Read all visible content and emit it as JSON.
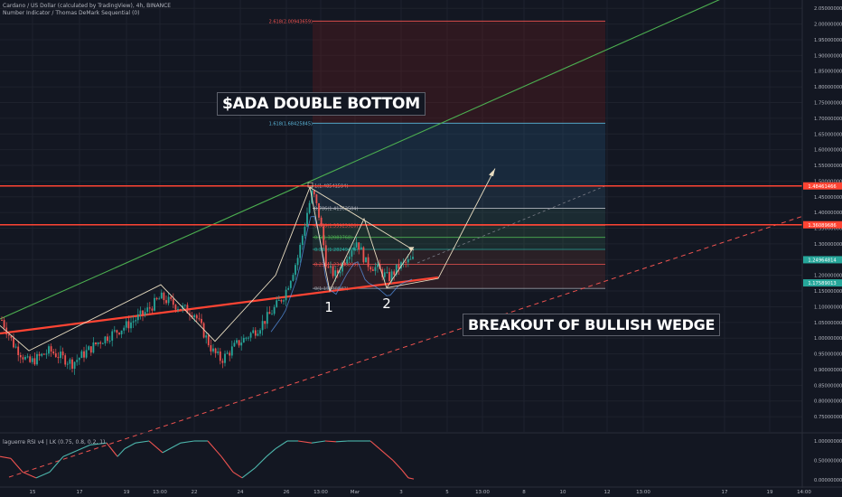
{
  "header": {
    "title": "Cardano / US Dollar (calculated by TradingView), 4h, BINANCE",
    "indicator": "Number Indicator / Thomas DeMark Sequential (0)"
  },
  "annotations": {
    "double_bottom": "$ADA DOUBLE BOTTOM",
    "breakout": "BREAKOUT OF BULLISH WEDGE",
    "bottom_1": "1",
    "bottom_2": "2"
  },
  "colors": {
    "background": "#131722",
    "up": "#26a69a",
    "down": "#ef5350",
    "resistance": "#ff4433",
    "channel_top": "#4caf50",
    "pattern": "#e8dcc0"
  },
  "chart_data": {
    "type": "candlestick",
    "symbol": "Cardano / US Dollar",
    "timeframe": "4h",
    "exchange": "BINANCE",
    "x_ticks": [
      "15",
      "17",
      "19",
      "13:00",
      "22",
      "24",
      "26",
      "13:00",
      "Mar",
      "3",
      "5",
      "13:00",
      "8",
      "10",
      "12",
      "13:00",
      "17",
      "19",
      "14:00"
    ],
    "y_ticks": [
      "2.05000000",
      "2.00000000",
      "1.95000000",
      "1.90000000",
      "1.85000000",
      "1.80000000",
      "1.75000000",
      "1.70000000",
      "1.65000000",
      "1.60000000",
      "1.55000000",
      "1.50000000",
      "1.45000000",
      "1.40000000",
      "1.35000000",
      "1.30000000",
      "1.25000000",
      "1.20000000",
      "1.15000000",
      "1.10000000",
      "1.05000000",
      "1.00000000",
      "0.95000000",
      "0.90000000",
      "0.85000000",
      "0.80000000",
      "0.75000000"
    ],
    "ylim": [
      0.72,
      2.06
    ],
    "price_badges": [
      {
        "label": "1.48461466",
        "value": 1.4846,
        "color": "#ff4433"
      },
      {
        "label": "1.36089686",
        "value": 1.3609,
        "color": "#ff4433"
      },
      {
        "label": "1.24964814",
        "value": 1.2496,
        "color": "#26a69a"
      },
      {
        "label": "1.17589013",
        "value": 1.1759,
        "color": "#26a69a"
      }
    ],
    "horizontal_levels": [
      1.4846,
      1.3609
    ],
    "fibonacci": [
      {
        "ratio": "2.618",
        "label": "2.618(2.00943659)",
        "value": 2.0094
      },
      {
        "ratio": "1.618",
        "label": "1.618(1.68425845)",
        "value": 1.6843
      },
      {
        "ratio": "1",
        "label": "1(1.48541594)",
        "value": 1.4854
      },
      {
        "ratio": "0.786",
        "label": "0.786(1.41363584)",
        "value": 1.4136
      },
      {
        "ratio": "0.618",
        "label": "0.618(1.35923920)",
        "value": 1.3592
      },
      {
        "ratio": "0.5",
        "label": "0.5(1.32083768)",
        "value": 1.3208
      },
      {
        "ratio": "0.382",
        "label": "0.382(1.28249474)",
        "value": 1.2825
      },
      {
        "ratio": "0.236",
        "label": "0.236(1.23496899)",
        "value": 1.235
      },
      {
        "ratio": "0",
        "label": "0(1.15830942)",
        "value": 1.1583
      }
    ],
    "rsi": {
      "label": "laguerre RSI v4 | LK (0.75, 0.8, 0.2, 1)",
      "y_ticks": [
        "1.00000000",
        "0.50000000",
        "0.00000000"
      ],
      "ylim": [
        0,
        1
      ]
    }
  }
}
